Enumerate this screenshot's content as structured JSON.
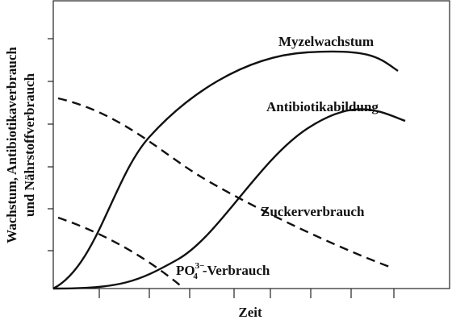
{
  "axes": {
    "y_label": [
      "Wachstum, Antibiotikaverbrauch",
      "und Nährstoffverbrauch"
    ],
    "x_label": "Zeit"
  },
  "curves": [
    {
      "label": "Myzelwachstum"
    },
    {
      "label": "Antibiotikabildung"
    },
    {
      "label": "Zuckerverbrauch"
    },
    {
      "label": {
        "main": "PO",
        "sub": "4",
        "sup": "3−",
        "rest": "-Verbrauch"
      }
    }
  ]
}
